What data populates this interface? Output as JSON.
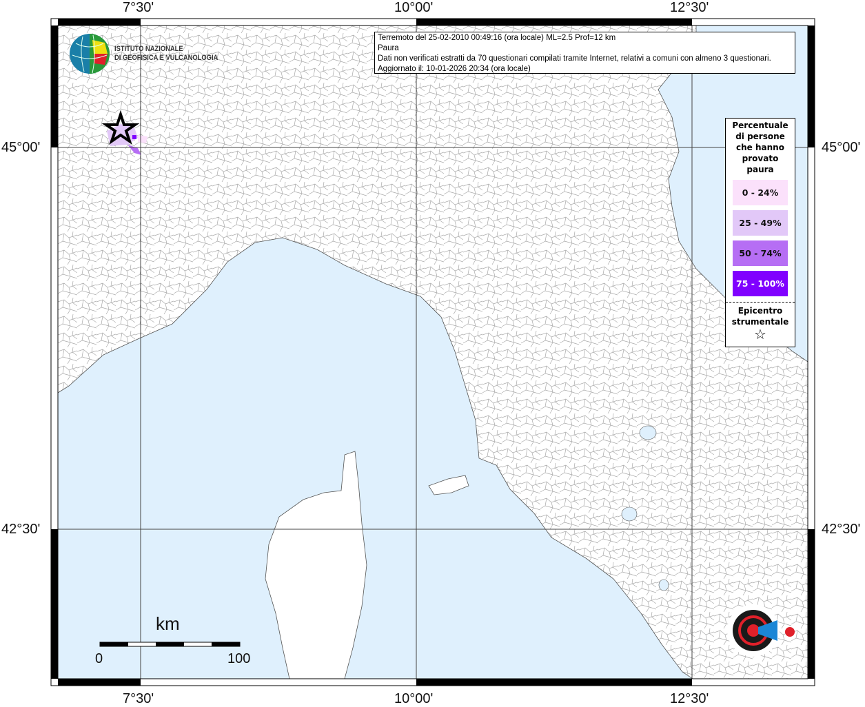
{
  "map": {
    "lon_ticks": [
      "7°30'",
      "10°00'",
      "12°30'"
    ],
    "lat_ticks": [
      "45°00'",
      "42°30'"
    ],
    "colors": {
      "sea": "#dff0fd",
      "land": "#ffffff",
      "borders": "#9a9a9a"
    }
  },
  "info": {
    "line1": "Terremoto del 25-02-2010 00:49:16 (ora locale) ML=2.5 Prof=12 km",
    "line2": "Paura",
    "line3": "Dati non verificati estratti da 70 questionari compilati tramite Internet, relativi a comuni con almeno 3 questionari.",
    "line4": "Aggiornato il: 10-01-2026 20:34 (ora locale)"
  },
  "legend": {
    "title_lines": [
      "Percentuale",
      "di persone",
      "che hanno",
      "provato",
      "paura"
    ],
    "items": [
      {
        "label": "0 - 24%",
        "color": "#fbe1fb",
        "text_color": "#111111"
      },
      {
        "label": "25 - 49%",
        "color": "#e2c8f8",
        "text_color": "#111111"
      },
      {
        "label": "50 - 74%",
        "color": "#b66ef4",
        "text_color": "#111111"
      },
      {
        "label": "75 - 100%",
        "color": "#8000ff",
        "text_color": "#ffffff"
      }
    ],
    "epicenter_lines": [
      "Epicentro",
      "strumentale"
    ],
    "epicenter_icon": "star-outline-icon"
  },
  "logos": {
    "ingv": [
      "ISTITUTO NAZIONALE",
      "DI GEOFISICA E VULCANOLOGIA"
    ],
    "hsit": "www.haisentitoilterremoto.it"
  },
  "scale": {
    "unit": "km",
    "start": "0",
    "end": "100"
  }
}
